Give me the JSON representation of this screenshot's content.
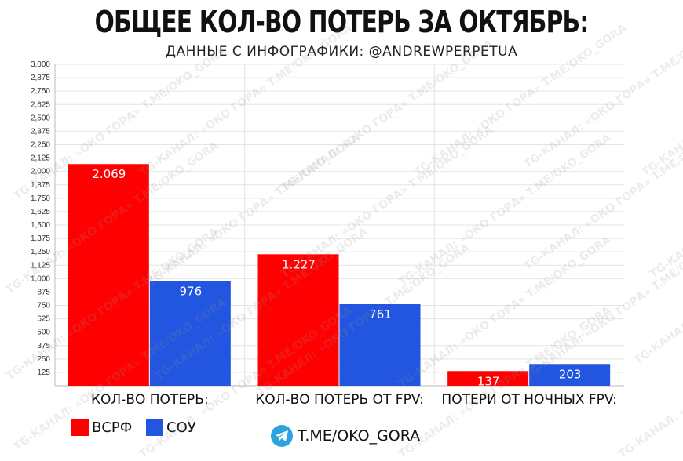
{
  "header": {
    "title": "ОБЩЕЕ КОЛ-ВО ПОТЕРЬ ЗА ОКТЯБРЬ:",
    "subtitle": "ДАННЫЕ С ИНФОГРАФИКИ: @ANDREWPERPETUA"
  },
  "chart_data": {
    "type": "bar",
    "categories": [
      "КОЛ-ВО ПОТЕРЬ:",
      "КОЛ-ВО ПОТЕРЬ ОТ FPV:",
      "ПОТЕРИ ОТ НОЧНЫХ FPV:"
    ],
    "series": [
      {
        "name": "ВСРФ",
        "values": [
          2069,
          1227,
          137
        ],
        "labels": [
          "2.069",
          "1.227",
          "137"
        ],
        "color": "#ff0000"
      },
      {
        "name": "СОУ",
        "values": [
          976,
          761,
          203
        ],
        "labels": [
          "976",
          "761",
          "203"
        ],
        "color": "#2255e0"
      }
    ],
    "ylim": [
      0,
      3000
    ],
    "yticks": [
      125,
      250,
      375,
      500,
      625,
      750,
      875,
      1000,
      1125,
      1250,
      1375,
      1500,
      1625,
      1750,
      1875,
      2000,
      2125,
      2250,
      2375,
      2500,
      2625,
      2750,
      2875,
      3000
    ],
    "ytick_labels": [
      "125",
      "250",
      "375",
      "500",
      "625",
      "750",
      "875",
      "1,000",
      "1,125",
      "1,250",
      "1,375",
      "1,500",
      "1,625",
      "1,750",
      "1,875",
      "2,000",
      "2,125",
      "2,250",
      "2,375",
      "2,500",
      "2,625",
      "2,750",
      "2,875",
      "3,000"
    ],
    "grid": true,
    "legend_position": "bottom-left"
  },
  "footer": {
    "telegram_icon": "telegram-icon",
    "link_text": "T.ME/OKO_GORA"
  },
  "watermark": {
    "line1": "TG-КАНАЛ: «ОКО ГОРА»",
    "line2": "T.ME/OKO_GORA"
  }
}
